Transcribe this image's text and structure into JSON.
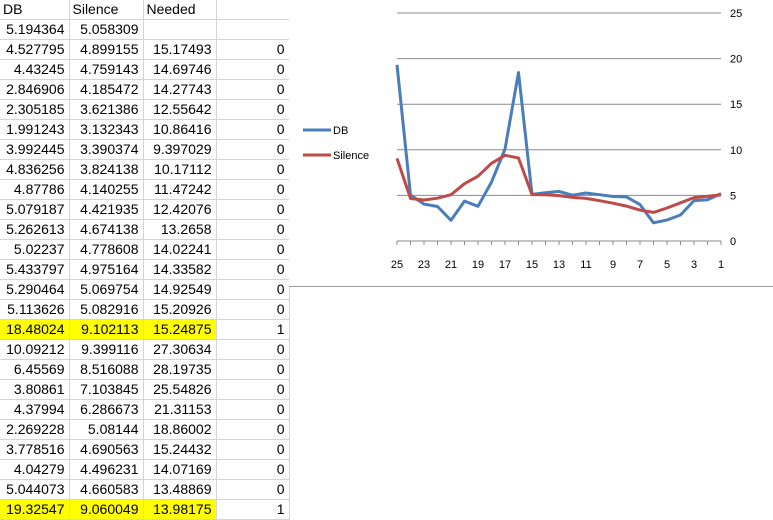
{
  "sheet": {
    "headers": [
      "DB",
      "Silence",
      "Needed",
      ""
    ],
    "rows": [
      {
        "db": "5.194364",
        "silence": "5.058309",
        "needed": "",
        "flag": "",
        "hl": false
      },
      {
        "db": "4.527795",
        "silence": "4.899155",
        "needed": "15.17493",
        "flag": "0",
        "hl": false
      },
      {
        "db": "4.43245",
        "silence": "4.759143",
        "needed": "14.69746",
        "flag": "0",
        "hl": false
      },
      {
        "db": "2.846906",
        "silence": "4.185472",
        "needed": "14.27743",
        "flag": "0",
        "hl": false
      },
      {
        "db": "2.305185",
        "silence": "3.621386",
        "needed": "12.55642",
        "flag": "0",
        "hl": false
      },
      {
        "db": "1.991243",
        "silence": "3.132343",
        "needed": "10.86416",
        "flag": "0",
        "hl": false
      },
      {
        "db": "3.992445",
        "silence": "3.390374",
        "needed": "9.397029",
        "flag": "0",
        "hl": false
      },
      {
        "db": "4.836256",
        "silence": "3.824138",
        "needed": "10.17112",
        "flag": "0",
        "hl": false
      },
      {
        "db": "4.87786",
        "silence": "4.140255",
        "needed": "11.47242",
        "flag": "0",
        "hl": false
      },
      {
        "db": "5.079187",
        "silence": "4.421935",
        "needed": "12.42076",
        "flag": "0",
        "hl": false
      },
      {
        "db": "5.262613",
        "silence": "4.674138",
        "needed": "13.2658",
        "flag": "0",
        "hl": false
      },
      {
        "db": "5.02237",
        "silence": "4.778608",
        "needed": "14.02241",
        "flag": "0",
        "hl": false
      },
      {
        "db": "5.433797",
        "silence": "4.975164",
        "needed": "14.33582",
        "flag": "0",
        "hl": false
      },
      {
        "db": "5.290464",
        "silence": "5.069754",
        "needed": "14.92549",
        "flag": "0",
        "hl": false
      },
      {
        "db": "5.113626",
        "silence": "5.082916",
        "needed": "15.20926",
        "flag": "0",
        "hl": false
      },
      {
        "db": "18.48024",
        "silence": "9.102113",
        "needed": "15.24875",
        "flag": "1",
        "hl": true
      },
      {
        "db": "10.09212",
        "silence": "9.399116",
        "needed": "27.30634",
        "flag": "0",
        "hl": false
      },
      {
        "db": "6.45569",
        "silence": "8.516088",
        "needed": "28.19735",
        "flag": "0",
        "hl": false
      },
      {
        "db": "3.80861",
        "silence": "7.103845",
        "needed": "25.54826",
        "flag": "0",
        "hl": false
      },
      {
        "db": "4.37994",
        "silence": "6.286673",
        "needed": "21.31153",
        "flag": "0",
        "hl": false
      },
      {
        "db": "2.269228",
        "silence": "5.08144",
        "needed": "18.86002",
        "flag": "0",
        "hl": false
      },
      {
        "db": "3.778516",
        "silence": "4.690563",
        "needed": "15.24432",
        "flag": "0",
        "hl": false
      },
      {
        "db": "4.04279",
        "silence": "4.496231",
        "needed": "14.07169",
        "flag": "0",
        "hl": false
      },
      {
        "db": "5.044073",
        "silence": "4.660583",
        "needed": "13.48869",
        "flag": "0",
        "hl": false
      },
      {
        "db": "19.32547",
        "silence": "9.060049",
        "needed": "13.98175",
        "flag": "1",
        "hl": true
      }
    ]
  },
  "colors": {
    "highlight": "#ffff00",
    "db_series": "#4a7ebb",
    "silence_series": "#be4b48",
    "gridline": "#8c8c8c"
  },
  "chart_data": {
    "type": "line",
    "x": [
      1,
      2,
      3,
      4,
      5,
      6,
      7,
      8,
      9,
      10,
      11,
      12,
      13,
      14,
      15,
      16,
      17,
      18,
      19,
      20,
      21,
      22,
      23,
      24,
      25
    ],
    "x_reversed": true,
    "x_tick_labels": [
      "25",
      "23",
      "21",
      "19",
      "17",
      "15",
      "13",
      "11",
      "9",
      "7",
      "5",
      "3",
      "1"
    ],
    "ylim": [
      0,
      25
    ],
    "y_tick_labels": [
      "0",
      "5",
      "10",
      "15",
      "20",
      "25"
    ],
    "y_axis_side": "right",
    "grid": true,
    "legend_position": "left",
    "series": [
      {
        "name": "DB",
        "values": [
          5.194364,
          4.527795,
          4.43245,
          2.846906,
          2.305185,
          1.991243,
          3.992445,
          4.836256,
          4.87786,
          5.079187,
          5.262613,
          5.02237,
          5.433797,
          5.290464,
          5.113626,
          18.48024,
          10.09212,
          6.45569,
          3.80861,
          4.37994,
          2.269228,
          3.778516,
          4.04279,
          5.044073,
          19.32547
        ]
      },
      {
        "name": "Silence",
        "values": [
          5.058309,
          4.899155,
          4.759143,
          4.185472,
          3.621386,
          3.132343,
          3.390374,
          3.824138,
          4.140255,
          4.421935,
          4.674138,
          4.778608,
          4.975164,
          5.069754,
          5.082916,
          9.102113,
          9.399116,
          8.516088,
          7.103845,
          6.286673,
          5.08144,
          4.690563,
          4.496231,
          4.660583,
          9.060049
        ]
      }
    ]
  }
}
